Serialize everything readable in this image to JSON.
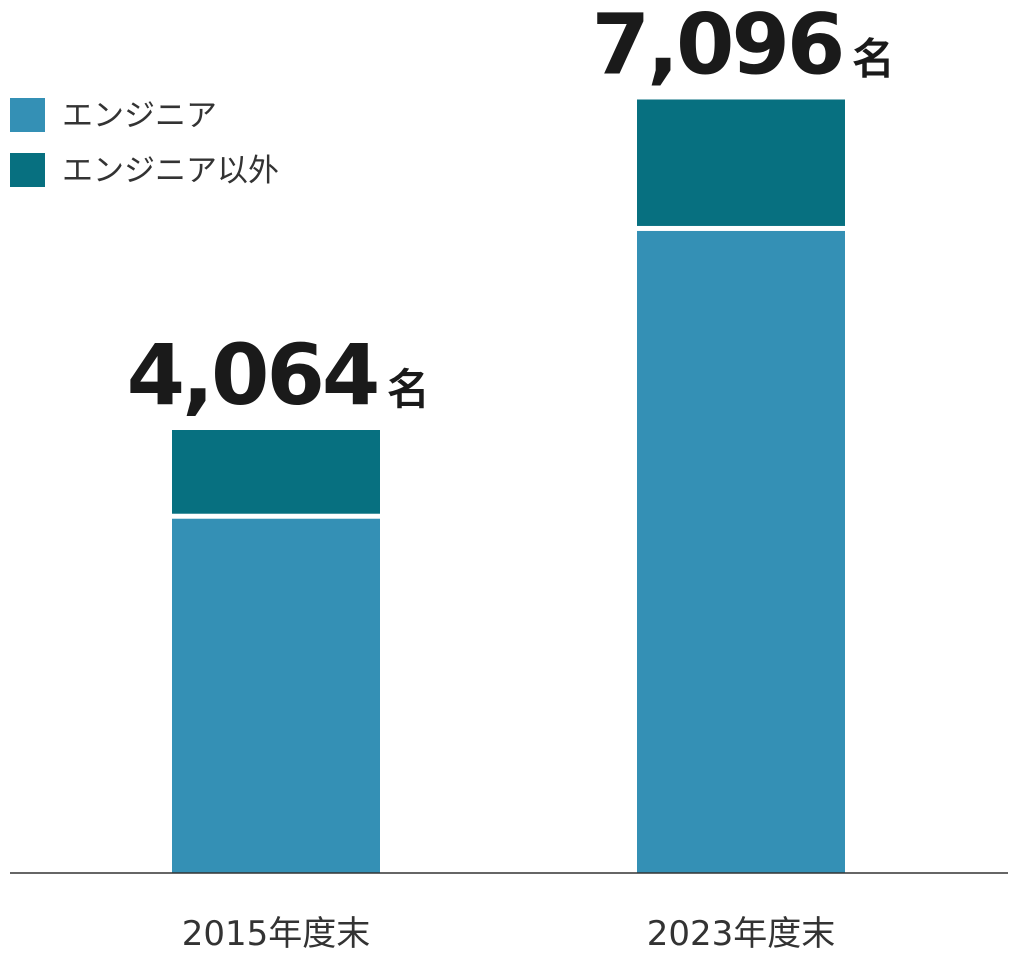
{
  "chart_data": {
    "type": "stacked-bar",
    "categories": [
      "2015年度末",
      "2023年度末"
    ],
    "series": [
      {
        "name": "エンジニア",
        "color": "#3490b5",
        "values": [
          3250,
          5890
        ]
      },
      {
        "name": "エンジニア以外",
        "color": "#077080",
        "values": [
          814,
          1206
        ]
      }
    ],
    "totals": [
      4064,
      7096
    ],
    "total_labels": [
      "4,064",
      "7,096"
    ],
    "total_unit": "名"
  }
}
